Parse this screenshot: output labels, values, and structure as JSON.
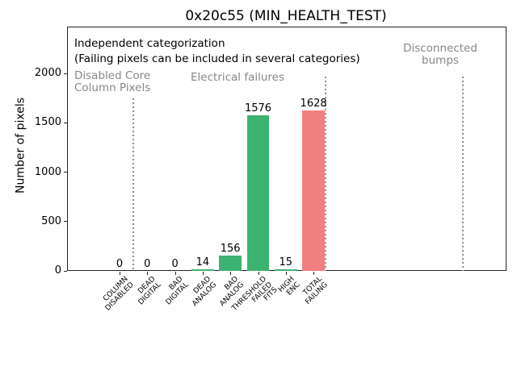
{
  "figure": {
    "title": "0x20c55 (MIN_HEALTH_TEST)",
    "ylabel": "Number of pixels"
  },
  "annotations": {
    "independent": "Independent categorization",
    "failing_note": "(Failing pixels can be included in several categories)"
  },
  "sections": {
    "disabled_core": "Disabled Core\nColumn Pixels",
    "electrical": "Electrical failures",
    "disconnected": "Disconnected\nbumps"
  },
  "colors": {
    "bar_green": "#3cb371",
    "bar_red": "#f08080",
    "section_gray": "#878787",
    "separator_gray": "#8f8f8f"
  },
  "chart_data": {
    "type": "bar",
    "title": "0x20c55 (MIN_HEALTH_TEST)",
    "xlabel": "",
    "ylabel": "Number of pixels",
    "categories": [
      "COLUMN\nDISABLED",
      "DEAD\nDIGITAL",
      "BAD\nDIGITAL",
      "DEAD\nANALOG",
      "BAD\nANALOG",
      "THRESHOLD\nFAILED\nFITS",
      "HIGH\nENC",
      "TOTAL\nFAILING"
    ],
    "values": [
      0,
      0,
      0,
      14,
      156,
      1576,
      15,
      1628
    ],
    "value_labels": [
      "0",
      "0",
      "0",
      "14",
      "156",
      "1576",
      "15",
      "1628"
    ],
    "bar_colors": [
      "#3cb371",
      "#3cb371",
      "#3cb371",
      "#3cb371",
      "#3cb371",
      "#3cb371",
      "#3cb371",
      "#f08080"
    ],
    "yticks": [
      0,
      500,
      1000,
      1500,
      2000
    ],
    "ylim": [
      0,
      2470
    ],
    "grid": false,
    "legend": null,
    "group_labels": [
      "Disabled Core Column Pixels",
      "Electrical failures",
      "Disconnected bumps"
    ],
    "separators_after_category": [
      0,
      7
    ]
  }
}
